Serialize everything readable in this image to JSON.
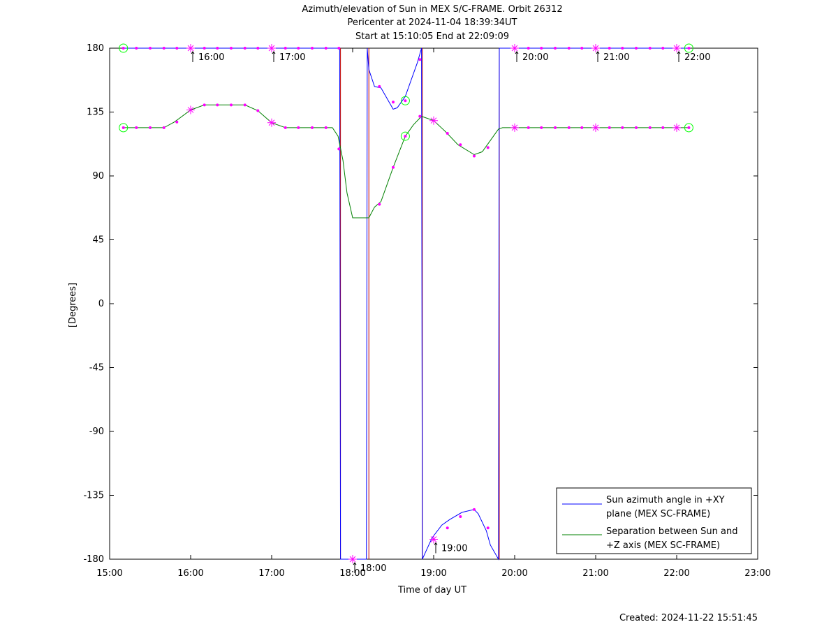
{
  "chart_data": {
    "type": "line",
    "title_lines": [
      "Azimuth/elevation of Sun in MEX S/C-FRAME.  Orbit 26312",
      "Pericenter at 2024-11-04 18:39:34UT",
      "Start at 15:10:05 End at 22:09:09"
    ],
    "xlabel": "Time of day UT",
    "ylabel": "[Degrees]",
    "xlim": [
      15.0,
      23.0
    ],
    "ylim": [
      -180,
      180
    ],
    "x_ticks": [
      15,
      16,
      17,
      18,
      19,
      20,
      21,
      22,
      23
    ],
    "x_tick_labels": [
      "15:00",
      "16:00",
      "17:00",
      "18:00",
      "19:00",
      "20:00",
      "21:00",
      "22:00",
      "23:00"
    ],
    "y_ticks": [
      180,
      135,
      90,
      45,
      0,
      -45,
      -90,
      -135,
      -180
    ],
    "y_tick_labels": [
      "180",
      "135",
      "90",
      "45",
      "0",
      "-45",
      "-90",
      "-135",
      "-180"
    ],
    "legend_position": "bottom-right",
    "colors": {
      "azimuth": "#0000ff",
      "separation": "#008000",
      "markers": "#ff00ff",
      "endpoints": "#00ff00",
      "wrap_lines": "#c00000"
    },
    "series": [
      {
        "name_lines": [
          "Sun azimuth angle in +XY",
          "plane (MEX SC-FRAME)"
        ],
        "color": "#0000ff",
        "segments": [
          [
            [
              15.17,
              180
            ],
            [
              16.0,
              180
            ],
            [
              17.0,
              180
            ],
            [
              17.8,
              180
            ],
            [
              17.84,
              180
            ],
            [
              17.85,
              -180
            ],
            [
              18.17,
              -180
            ],
            [
              18.18,
              180
            ],
            [
              18.2,
              165
            ],
            [
              18.27,
              153
            ],
            [
              18.35,
              152
            ],
            [
              18.45,
              142
            ],
            [
              18.5,
              137
            ],
            [
              18.55,
              138
            ],
            [
              18.65,
              146
            ],
            [
              18.8,
              170
            ],
            [
              18.85,
              180
            ],
            [
              18.86,
              -180
            ],
            [
              18.9,
              -175
            ],
            [
              18.98,
              -165
            ],
            [
              19.1,
              -156
            ],
            [
              19.2,
              -152
            ],
            [
              19.35,
              -147
            ],
            [
              19.5,
              -145
            ],
            [
              19.55,
              -148
            ],
            [
              19.65,
              -160
            ],
            [
              19.7,
              -170
            ],
            [
              19.8,
              -180
            ],
            [
              19.81,
              180
            ],
            [
              20.0,
              180
            ],
            [
              21.0,
              180
            ],
            [
              22.15,
              180
            ]
          ]
        ]
      },
      {
        "name_lines": [
          "Separation between Sun and",
          "+Z axis (MEX SC-FRAME)"
        ],
        "color": "#008000",
        "points": [
          [
            15.17,
            124
          ],
          [
            15.67,
            124
          ],
          [
            15.8,
            128
          ],
          [
            16.0,
            136.5
          ],
          [
            16.17,
            140
          ],
          [
            16.67,
            140
          ],
          [
            16.83,
            136
          ],
          [
            17.0,
            127.5
          ],
          [
            17.17,
            124
          ],
          [
            17.75,
            124
          ],
          [
            17.82,
            118
          ],
          [
            17.88,
            101
          ],
          [
            17.93,
            78
          ],
          [
            18.0,
            60.5
          ],
          [
            18.2,
            60.5
          ],
          [
            18.27,
            68
          ],
          [
            18.35,
            72
          ],
          [
            18.5,
            96
          ],
          [
            18.65,
            118
          ],
          [
            18.75,
            126
          ],
          [
            18.85,
            132
          ],
          [
            19.0,
            129
          ],
          [
            19.15,
            121
          ],
          [
            19.3,
            112
          ],
          [
            19.5,
            105
          ],
          [
            19.6,
            107
          ],
          [
            19.7,
            115
          ],
          [
            19.8,
            123
          ],
          [
            19.85,
            124
          ],
          [
            20.0,
            124
          ],
          [
            21.0,
            124
          ],
          [
            22.15,
            124
          ]
        ]
      }
    ],
    "wrap_lines_x": [
      17.85,
      18.2,
      18.86,
      19.81
    ],
    "marker_points": [
      [
        15.33,
        180
      ],
      [
        15.5,
        180
      ],
      [
        15.67,
        180
      ],
      [
        15.83,
        180
      ],
      [
        16.17,
        180
      ],
      [
        16.33,
        180
      ],
      [
        16.5,
        180
      ],
      [
        16.67,
        180
      ],
      [
        16.83,
        180
      ],
      [
        17.17,
        180
      ],
      [
        17.33,
        180
      ],
      [
        17.5,
        180
      ],
      [
        17.67,
        180
      ],
      [
        17.83,
        180
      ],
      [
        20.17,
        180
      ],
      [
        20.33,
        180
      ],
      [
        20.5,
        180
      ],
      [
        20.67,
        180
      ],
      [
        20.83,
        180
      ],
      [
        21.17,
        180
      ],
      [
        21.33,
        180
      ],
      [
        21.5,
        180
      ],
      [
        21.67,
        180
      ],
      [
        21.83,
        180
      ],
      [
        18.33,
        153
      ],
      [
        18.5,
        142
      ],
      [
        18.83,
        172
      ],
      [
        19.17,
        -158
      ],
      [
        19.33,
        -150
      ],
      [
        19.5,
        -145
      ],
      [
        19.67,
        -158
      ],
      [
        15.33,
        124
      ],
      [
        15.5,
        124
      ],
      [
        15.67,
        124
      ],
      [
        15.83,
        128
      ],
      [
        16.17,
        140
      ],
      [
        16.33,
        140
      ],
      [
        16.5,
        140
      ],
      [
        16.67,
        140
      ],
      [
        16.83,
        136
      ],
      [
        17.17,
        124
      ],
      [
        17.33,
        124
      ],
      [
        17.5,
        124
      ],
      [
        17.67,
        124
      ],
      [
        17.83,
        109
      ],
      [
        18.33,
        70
      ],
      [
        18.5,
        96
      ],
      [
        18.83,
        132
      ],
      [
        19.17,
        120
      ],
      [
        19.33,
        112
      ],
      [
        19.5,
        104
      ],
      [
        19.67,
        110
      ],
      [
        20.17,
        124
      ],
      [
        20.33,
        124
      ],
      [
        20.5,
        124
      ],
      [
        20.67,
        124
      ],
      [
        20.83,
        124
      ],
      [
        21.17,
        124
      ],
      [
        21.33,
        124
      ],
      [
        21.5,
        124
      ],
      [
        21.67,
        124
      ],
      [
        21.83,
        124
      ]
    ],
    "hour_markers": [
      [
        16.0,
        180
      ],
      [
        17.0,
        180
      ],
      [
        18.0,
        -180
      ],
      [
        19.0,
        -166
      ],
      [
        20.0,
        180
      ],
      [
        21.0,
        180
      ],
      [
        22.0,
        180
      ],
      [
        16.0,
        136.5
      ],
      [
        17.0,
        127.5
      ],
      [
        19.0,
        129
      ],
      [
        20.0,
        124
      ],
      [
        21.0,
        124
      ],
      [
        22.0,
        124
      ]
    ],
    "endpoint_circles": [
      [
        15.17,
        180
      ],
      [
        15.17,
        124
      ],
      [
        22.15,
        180
      ],
      [
        22.15,
        124
      ],
      [
        18.65,
        143
      ],
      [
        18.65,
        118
      ]
    ],
    "hour_labels": [
      {
        "x": 16.0,
        "y": 180,
        "text": "16:00"
      },
      {
        "x": 17.0,
        "y": 180,
        "text": "17:00"
      },
      {
        "x": 18.0,
        "y": -180,
        "text": "18:00"
      },
      {
        "x": 19.0,
        "y": -166,
        "text": "19:00"
      },
      {
        "x": 20.0,
        "y": 180,
        "text": "20:00"
      },
      {
        "x": 21.0,
        "y": 180,
        "text": "21:00"
      },
      {
        "x": 22.0,
        "y": 180,
        "text": "22:00"
      }
    ]
  },
  "footer": {
    "created": "Created: 2024-11-22 15:51:45"
  }
}
